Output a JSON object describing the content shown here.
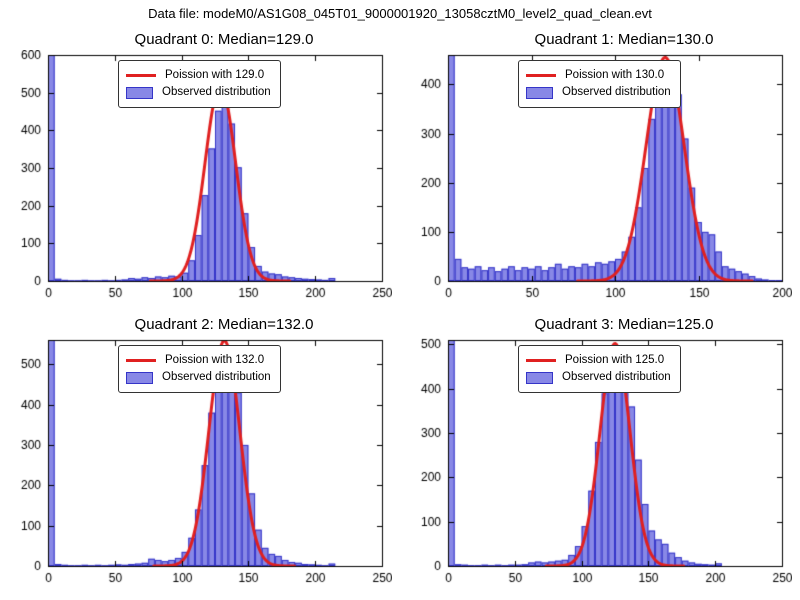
{
  "figure": {
    "suptitle": "Data file: modeM0/AS1G08_045T01_9000001920_13058cztM0_level2_quad_clean.evt"
  },
  "colors": {
    "bar_fill": "#8888e6",
    "bar_edge": "#3535c8",
    "curve": "#e02020",
    "axis": "#000000",
    "background": "#ffffff"
  },
  "chart_data": [
    {
      "type": "bar",
      "subtype": "histogram-with-fit",
      "title": "Quadrant 0: Median=129.0",
      "median": 129.0,
      "legend": [
        "Poission with 129.0",
        "Observed distribution"
      ],
      "xlim": [
        0,
        250
      ],
      "ylim": [
        0,
        600
      ],
      "xticks": [
        0,
        50,
        100,
        150,
        200,
        250
      ],
      "yticks": [
        0,
        100,
        200,
        300,
        400,
        500,
        600
      ],
      "bins": {
        "start": 0,
        "width": 5,
        "heights": [
          600,
          6,
          3,
          2,
          2,
          3,
          2,
          2,
          3,
          2,
          3,
          4,
          8,
          6,
          10,
          8,
          12,
          10,
          14,
          12,
          22,
          55,
          122,
          228,
          352,
          452,
          478,
          418,
          302,
          180,
          90,
          40,
          25,
          20,
          18,
          12,
          10,
          8,
          6,
          5,
          4,
          3,
          8,
          0,
          0,
          0,
          0,
          0,
          0,
          0
        ]
      },
      "fit": {
        "type": "poisson",
        "lambda": 129.0,
        "amp": 520,
        "mu": 129,
        "sigma": 11.4
      }
    },
    {
      "type": "bar",
      "subtype": "histogram-with-fit",
      "title": "Quadrant 1: Median=130.0",
      "median": 130.0,
      "legend": [
        "Poission with 130.0",
        "Observed distribution"
      ],
      "xlim": [
        0,
        200
      ],
      "ylim": [
        0,
        460
      ],
      "xticks": [
        0,
        50,
        100,
        150,
        200
      ],
      "yticks": [
        0,
        100,
        200,
        300,
        400
      ],
      "bins": {
        "start": 0,
        "width": 4,
        "heights": [
          460,
          45,
          28,
          25,
          30,
          22,
          28,
          20,
          25,
          30,
          22,
          28,
          25,
          30,
          22,
          28,
          35,
          25,
          30,
          28,
          35,
          30,
          38,
          35,
          40,
          45,
          60,
          90,
          150,
          230,
          330,
          410,
          440,
          430,
          380,
          290,
          190,
          120,
          100,
          95,
          60,
          30,
          25,
          20,
          15,
          10,
          5,
          3,
          2,
          2
        ]
      },
      "fit": {
        "type": "poisson",
        "lambda": 130.0,
        "amp": 455,
        "mu": 130,
        "sigma": 11.4
      }
    },
    {
      "type": "bar",
      "subtype": "histogram-with-fit",
      "title": "Quadrant 2: Median=132.0",
      "median": 132.0,
      "legend": [
        "Poission with 132.0",
        "Observed distribution"
      ],
      "xlim": [
        0,
        250
      ],
      "ylim": [
        0,
        560
      ],
      "xticks": [
        0,
        50,
        100,
        150,
        200,
        250
      ],
      "yticks": [
        0,
        100,
        200,
        300,
        400,
        500
      ],
      "bins": {
        "start": 0,
        "width": 5,
        "heights": [
          560,
          5,
          3,
          2,
          2,
          3,
          2,
          3,
          2,
          3,
          4,
          3,
          5,
          6,
          8,
          18,
          15,
          12,
          15,
          20,
          35,
          70,
          140,
          250,
          380,
          480,
          540,
          520,
          430,
          300,
          180,
          90,
          45,
          30,
          25,
          15,
          10,
          8,
          5,
          4,
          3,
          2,
          6,
          0,
          0,
          0,
          0,
          0,
          0,
          0
        ]
      },
      "fit": {
        "type": "poisson",
        "lambda": 132.0,
        "amp": 558,
        "mu": 132,
        "sigma": 11.5
      }
    },
    {
      "type": "bar",
      "subtype": "histogram-with-fit",
      "title": "Quadrant 3: Median=125.0",
      "median": 125.0,
      "legend": [
        "Poission with 125.0",
        "Observed distribution"
      ],
      "xlim": [
        0,
        250
      ],
      "ylim": [
        0,
        510
      ],
      "xticks": [
        0,
        50,
        100,
        150,
        200,
        250
      ],
      "yticks": [
        0,
        100,
        200,
        300,
        400,
        500
      ],
      "bins": {
        "start": 0,
        "width": 5,
        "heights": [
          510,
          4,
          3,
          2,
          2,
          3,
          2,
          3,
          2,
          3,
          3,
          4,
          8,
          10,
          8,
          10,
          12,
          14,
          25,
          45,
          90,
          170,
          280,
          390,
          460,
          490,
          450,
          360,
          240,
          140,
          80,
          60,
          50,
          30,
          20,
          12,
          8,
          5,
          4,
          3,
          6,
          0,
          0,
          0,
          0,
          0,
          0,
          0,
          0,
          0
        ]
      },
      "fit": {
        "type": "poisson",
        "lambda": 125.0,
        "amp": 502,
        "mu": 125,
        "sigma": 11.2
      }
    }
  ]
}
